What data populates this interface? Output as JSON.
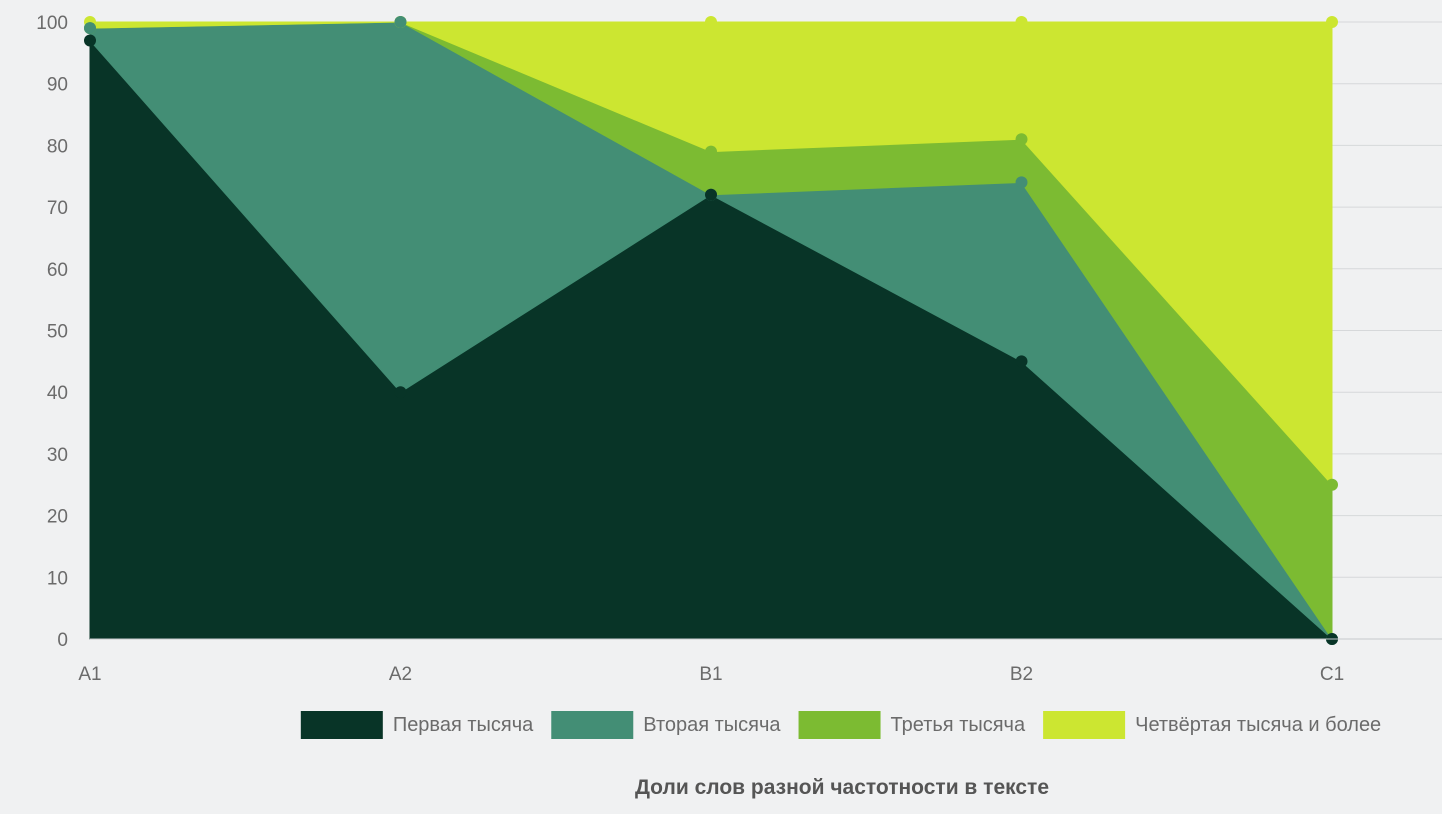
{
  "chart_data": {
    "type": "area",
    "stacked": true,
    "title": "Доли слов разной частотности в тексте",
    "categories": [
      "A1",
      "A2",
      "B1",
      "B2",
      "C1"
    ],
    "ylim": [
      0,
      100
    ],
    "yticks": [
      0,
      10,
      20,
      30,
      40,
      50,
      60,
      70,
      80,
      90,
      100
    ],
    "grid": true,
    "legend_position": "bottom",
    "series": [
      {
        "name": "Первая тысяча",
        "values": [
          97,
          40,
          72,
          45,
          0
        ],
        "color": "#083427"
      },
      {
        "name": "Вторая тысяча",
        "values": [
          2,
          60,
          0,
          29,
          0
        ],
        "color": "#438e75"
      },
      {
        "name": "Третья тысяча",
        "values": [
          0,
          0,
          7,
          7,
          25
        ],
        "color": "#7cbb32"
      },
      {
        "name": "Четвёртая тысяча и более",
        "values": [
          1,
          0,
          21,
          19,
          75
        ],
        "color": "#cce631"
      }
    ]
  }
}
